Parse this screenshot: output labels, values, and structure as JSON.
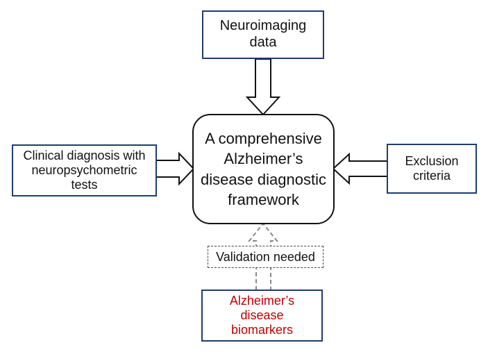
{
  "nodes": {
    "neuroimaging": {
      "lines": [
        "Neuroimaging",
        "data"
      ]
    },
    "center": {
      "lines": [
        "A comprehensive",
        "Alzheimer’s",
        "disease diagnostic",
        "framework"
      ]
    },
    "clinical": {
      "lines": [
        "Clinical diagnosis with",
        "neuropsychometric",
        "tests"
      ]
    },
    "exclusion": {
      "lines": [
        "Exclusion",
        "criteria"
      ]
    },
    "biomarkers": {
      "lines": [
        "Alzheimer’s",
        "disease",
        "biomarkers"
      ]
    }
  },
  "validation_label": "Validation needed",
  "colors": {
    "box_border": "#1f3c6e",
    "biomarker_text": "#c00000",
    "dashed": "#888888"
  }
}
